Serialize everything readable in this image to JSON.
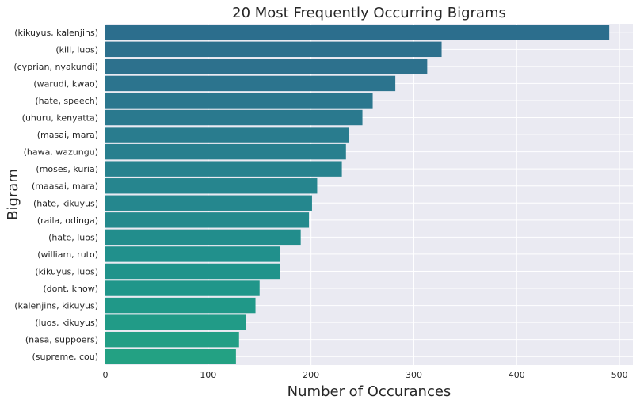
{
  "chart_data": {
    "type": "bar",
    "orientation": "horizontal",
    "title": "20 Most Frequently Occurring Bigrams",
    "xlabel": "Number of Occurances",
    "ylabel": "Bigram",
    "xlim": [
      0,
      513
    ],
    "xticks": [
      0,
      100,
      200,
      300,
      400,
      500
    ],
    "grid": true,
    "categories": [
      "(kikuyus, kalenjins)",
      "(kill, luos)",
      "(cyprian, nyakundi)",
      "(warudi, kwao)",
      "(hate, speech)",
      "(uhuru, kenyatta)",
      "(masai, mara)",
      "(hawa, wazungu)",
      "(moses, kuria)",
      "(maasai, mara)",
      "(hate, kikuyus)",
      "(raila, odinga)",
      "(hate, luos)",
      "(william, ruto)",
      "(kikuyus, luos)",
      "(dont, know)",
      "(kalenjins, kikuyus)",
      "(luos, kikuyus)",
      "(nasa, suppoers)",
      "(supreme, cou)"
    ],
    "values": [
      490,
      327,
      313,
      282,
      260,
      250,
      237,
      234,
      230,
      206,
      201,
      198,
      190,
      170,
      170,
      150,
      146,
      137,
      130,
      127
    ],
    "colors": [
      "#2c6e8d",
      "#2d708d",
      "#2d718d",
      "#2c748e",
      "#2b778e",
      "#2a798e",
      "#297c8e",
      "#287f8e",
      "#27828e",
      "#26858e",
      "#25878e",
      "#248a8d",
      "#228d8c",
      "#21908c",
      "#20938b",
      "#20968a",
      "#209888",
      "#219b87",
      "#229e85",
      "#23a183"
    ],
    "background_color": "#eaeaf2",
    "grid_color": "#ffffff"
  }
}
